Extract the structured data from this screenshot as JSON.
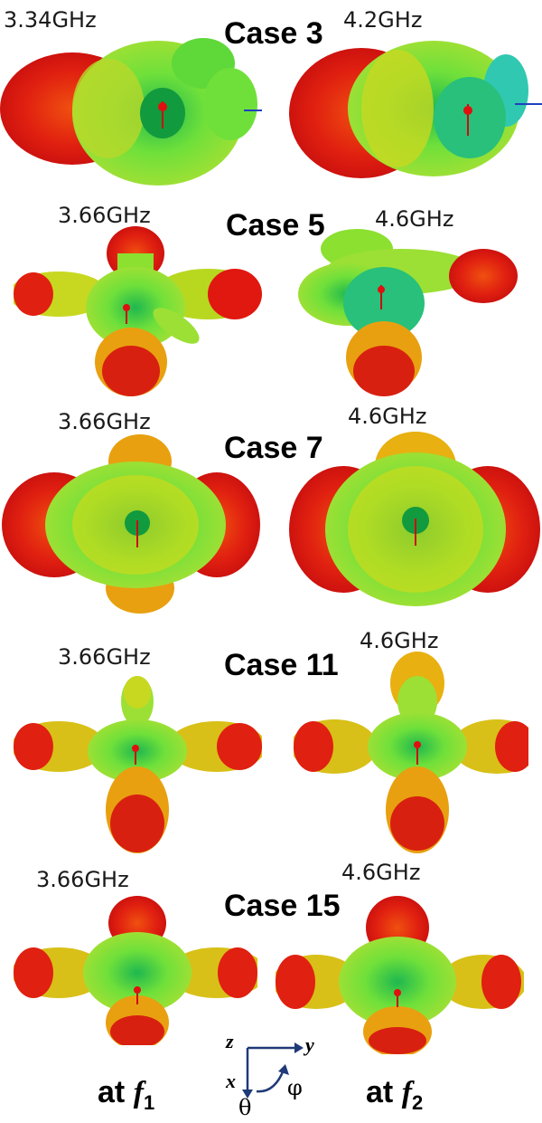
{
  "cases": [
    {
      "name": "Case 3",
      "left_freq": "3.34GHz",
      "right_freq": "4.2GHz"
    },
    {
      "name": "Case 5",
      "left_freq": "3.66GHz",
      "right_freq": "4.6GHz"
    },
    {
      "name": "Case 7",
      "left_freq": "3.66GHz",
      "right_freq": "4.6GHz"
    },
    {
      "name": "Case 11",
      "left_freq": "3.66GHz",
      "right_freq": "4.6GHz"
    },
    {
      "name": "Case 15",
      "left_freq": "3.66GHz",
      "right_freq": "4.6GHz"
    }
  ],
  "pattern_colors": {
    "max": "#e01010",
    "mid": "#f2c200",
    "low": "#7fe033",
    "min": "#19b84a"
  },
  "axes": {
    "z": "z",
    "y": "y",
    "x": "x",
    "theta": "θ",
    "phi": "φ"
  },
  "marker_label": "Theta",
  "bottom": {
    "left_prefix": "at",
    "left_symbol": "f",
    "left_sub": "1",
    "right_prefix": "at",
    "right_symbol": "f",
    "right_sub": "2"
  }
}
